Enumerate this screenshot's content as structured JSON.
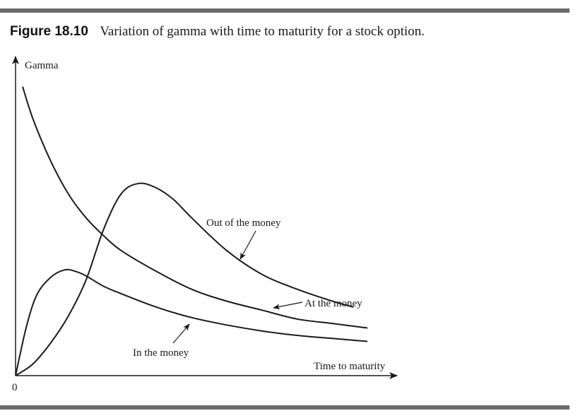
{
  "caption": {
    "figure_number": "Figure 18.10",
    "title": "Variation of gamma with time to maturity for a stock option."
  },
  "chart_data": {
    "type": "line",
    "title": "Variation of gamma with time to maturity for a stock option.",
    "xlabel": "Time to maturity",
    "ylabel": "Gamma",
    "origin_label": "0",
    "xlim": [
      0,
      10
    ],
    "ylim": [
      0,
      10
    ],
    "grid": false,
    "legend": "none",
    "series": [
      {
        "name": "At the money",
        "x": [
          0.2,
          0.5,
          1.0,
          1.5,
          2.0,
          2.5,
          3.0,
          4.0,
          5.0,
          6.0,
          7.0,
          8.0,
          9.0,
          10.0
        ],
        "y": [
          9.7,
          8.6,
          7.2,
          6.1,
          5.3,
          4.7,
          4.2,
          3.5,
          2.9,
          2.5,
          2.2,
          1.9,
          1.75,
          1.6
        ]
      },
      {
        "name": "Out of the money",
        "x": [
          0.0,
          0.5,
          1.0,
          1.5,
          2.0,
          2.5,
          3.0,
          3.5,
          4.0,
          4.5,
          5.0,
          6.0,
          7.0,
          8.0,
          9.0,
          9.6
        ],
        "y": [
          0.0,
          0.4,
          1.1,
          2.0,
          3.2,
          4.9,
          6.1,
          6.45,
          6.3,
          5.9,
          5.3,
          4.2,
          3.4,
          2.9,
          2.5,
          2.3
        ]
      },
      {
        "name": "In the money",
        "x": [
          0.0,
          0.3,
          0.6,
          1.0,
          1.4,
          1.7,
          2.0,
          2.5,
          3.0,
          4.0,
          5.0,
          6.0,
          7.0,
          8.0,
          9.0,
          10.0
        ],
        "y": [
          0.0,
          1.6,
          2.7,
          3.3,
          3.55,
          3.5,
          3.35,
          3.0,
          2.75,
          2.3,
          1.95,
          1.7,
          1.5,
          1.35,
          1.25,
          1.15
        ]
      }
    ],
    "annotations": [
      {
        "text": "Out of the money",
        "series": "Out of the money"
      },
      {
        "text": "At the money",
        "series": "At the money"
      },
      {
        "text": "In the money",
        "series": "In the money"
      }
    ]
  }
}
